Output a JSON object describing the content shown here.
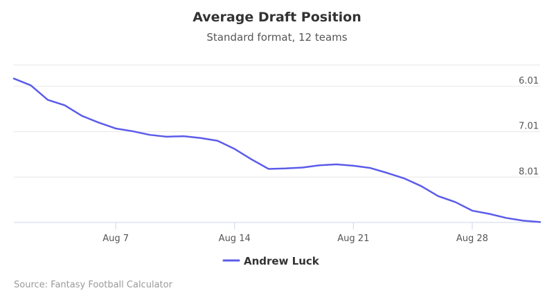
{
  "chart_data": {
    "type": "line",
    "title": "Average Draft Position",
    "subtitle": "Standard format, 12 teams",
    "xlabel": "",
    "ylabel": "",
    "x": [
      "Aug 1",
      "Aug 2",
      "Aug 3",
      "Aug 4",
      "Aug 5",
      "Aug 6",
      "Aug 7",
      "Aug 8",
      "Aug 9",
      "Aug 10",
      "Aug 11",
      "Aug 12",
      "Aug 13",
      "Aug 14",
      "Aug 15",
      "Aug 16",
      "Aug 17",
      "Aug 18",
      "Aug 19",
      "Aug 20",
      "Aug 21",
      "Aug 22",
      "Aug 23",
      "Aug 24",
      "Aug 25",
      "Aug 26",
      "Aug 27",
      "Aug 28",
      "Aug 29",
      "Aug 30",
      "Aug 31",
      "Sep 1"
    ],
    "x_ticks": [
      "Aug 7",
      "Aug 14",
      "Aug 21",
      "Aug 28"
    ],
    "y_ticks": [
      "6.01",
      "7.01",
      "8.01"
    ],
    "y_axis_side": "right",
    "y_reversed": true,
    "ylim": [
      5.54,
      9.01
    ],
    "grid": true,
    "legend_position": "bottom-center",
    "series": [
      {
        "name": "Andrew Luck",
        "color": "#5b5bea",
        "values": [
          5.84,
          5.99,
          6.31,
          6.43,
          6.66,
          6.81,
          6.94,
          7.0,
          7.08,
          7.12,
          7.11,
          7.15,
          7.21,
          7.39,
          7.62,
          7.83,
          7.82,
          7.8,
          7.75,
          7.73,
          7.76,
          7.81,
          7.92,
          8.04,
          8.21,
          8.43,
          8.56,
          8.75,
          8.82,
          8.91,
          8.97,
          9.0
        ]
      }
    ],
    "credit": "Source: Fantasy Football Calculator"
  }
}
